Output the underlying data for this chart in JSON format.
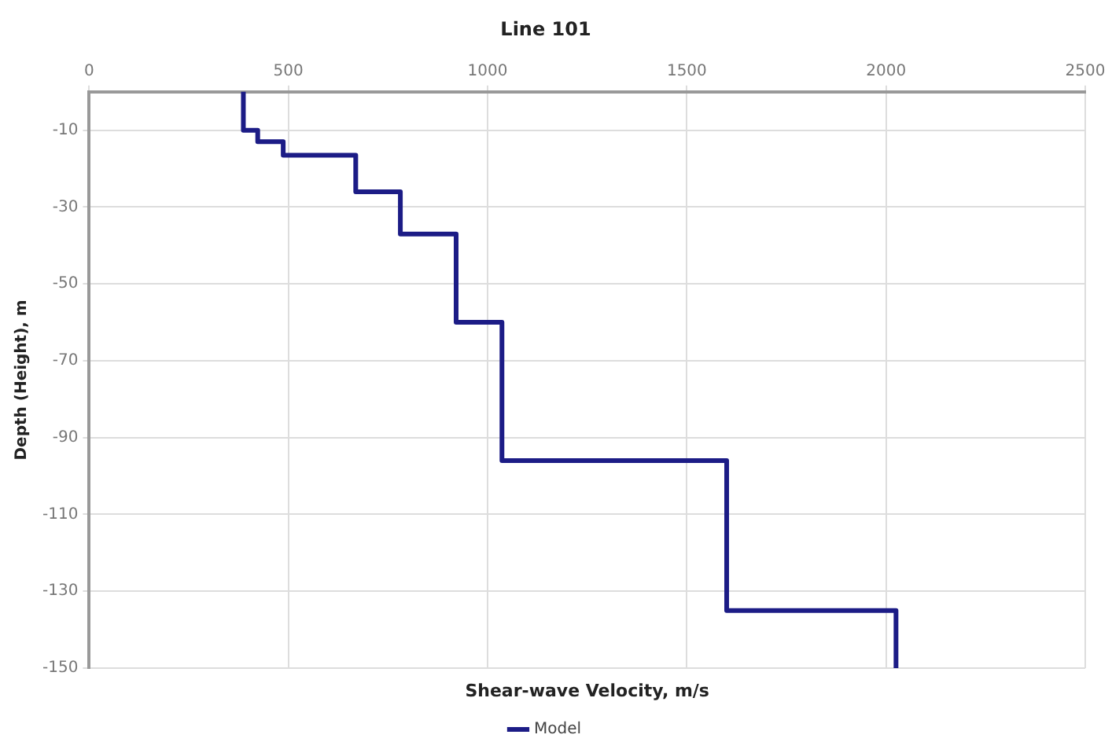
{
  "chart_data": {
    "type": "line",
    "title": "Line 101",
    "xlabel": "Shear-wave Velocity, m/s",
    "ylabel": "Depth (Height), m",
    "xlim": [
      0,
      2500
    ],
    "xticks": [
      0,
      500,
      1000,
      1500,
      2000,
      2500
    ],
    "ylim": [
      -150,
      0
    ],
    "yticks": [
      -10,
      -30,
      -50,
      -70,
      -90,
      -110,
      -130,
      -150
    ],
    "grid": true,
    "legend": "bottom",
    "marker": "none",
    "line_style": "solid",
    "series": [
      {
        "name": "Model",
        "color": "#1c1c86",
        "x": [
          387,
          387,
          423,
          423,
          487,
          487,
          669,
          669,
          781,
          781,
          921,
          921,
          1036,
          1036,
          1600,
          1600,
          2025,
          2025
        ],
        "values": [
          0,
          -10,
          -10,
          -13,
          -13,
          -16.5,
          -16.5,
          -26,
          -26,
          -37,
          -37,
          -60,
          -60,
          -96,
          -96,
          -135,
          -135,
          -150
        ]
      }
    ]
  }
}
